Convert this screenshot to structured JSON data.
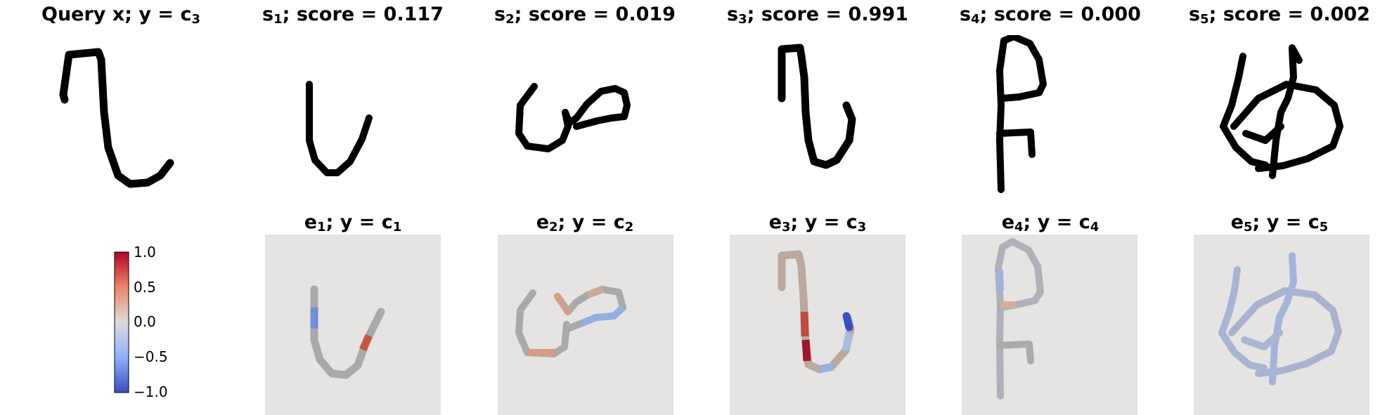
{
  "top_row": [
    {
      "title_pre": "Query x; y = c",
      "title_sub": "3",
      "title_post": ""
    },
    {
      "title_pre": "s",
      "title_sub": "1",
      "title_post": "; score = 0.117"
    },
    {
      "title_pre": "s",
      "title_sub": "2",
      "title_post": "; score = 0.019"
    },
    {
      "title_pre": "s",
      "title_sub": "3",
      "title_post": "; score = 0.991"
    },
    {
      "title_pre": "s",
      "title_sub": "4",
      "title_post": "; score = 0.000"
    },
    {
      "title_pre": "s",
      "title_sub": "5",
      "title_post": "; score = 0.002"
    }
  ],
  "bottom_row": [
    {
      "title_pre": "e",
      "title_sub": "1",
      "title_mid": "; y = c",
      "title_sub2": "1"
    },
    {
      "title_pre": "e",
      "title_sub": "2",
      "title_mid": "; y = c",
      "title_sub2": "2"
    },
    {
      "title_pre": "e",
      "title_sub": "3",
      "title_mid": "; y = c",
      "title_sub2": "3"
    },
    {
      "title_pre": "e",
      "title_sub": "4",
      "title_mid": "; y = c",
      "title_sub2": "4"
    },
    {
      "title_pre": "e",
      "title_sub": "5",
      "title_mid": "; y = c",
      "title_sub2": "5"
    }
  ],
  "colorbar": {
    "ticks": [
      "1.0",
      "0.5",
      "0.0",
      "−0.5",
      "−1.0"
    ],
    "colors": {
      "max": "#b40426",
      "mid": "#dddcdc",
      "min": "#3b4cc0"
    }
  },
  "colors": {
    "heatmap_background": "#e6e4e3",
    "stroke_neutral": "#a9a9a9"
  }
}
